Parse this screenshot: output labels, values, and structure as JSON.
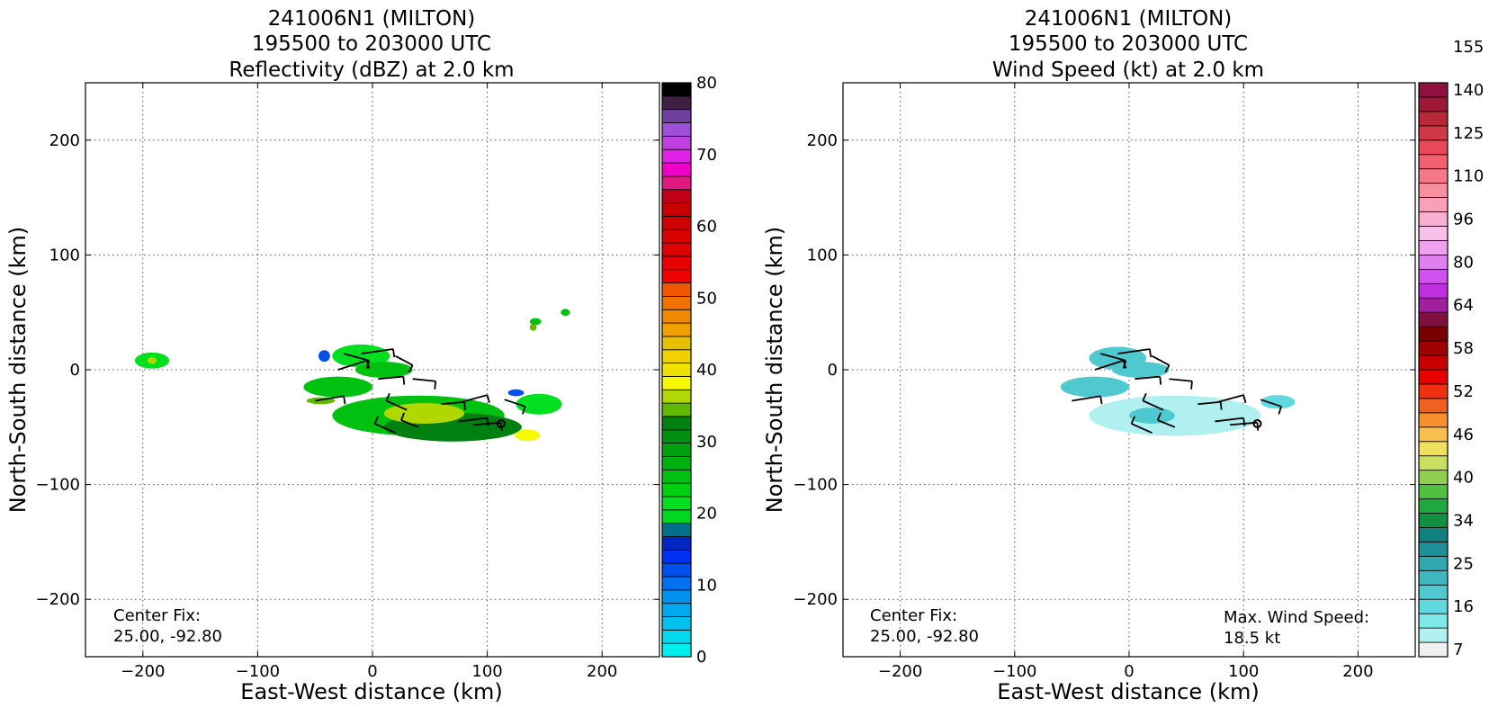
{
  "panels": [
    {
      "title_lines": [
        "241006N1 (MILTON)",
        "195500 to 203000 UTC",
        "Reflectivity (dBZ) at 2.0 km"
      ],
      "center_fix_lines": [
        "Center Fix:",
        "25.00, -92.80"
      ],
      "max_wind_lines": []
    },
    {
      "title_lines": [
        "241006N1 (MILTON)",
        "195500 to 203000 UTC",
        "Wind Speed (kt) at 2.0 km"
      ],
      "center_fix_lines": [
        "Center Fix:",
        "25.00, -92.80"
      ],
      "max_wind_lines": [
        "Max. Wind Speed:",
        "18.5 kt"
      ]
    }
  ],
  "chart_data": [
    {
      "type": "heatmap",
      "title": "241006N1 (MILTON) 195500 to 203000 UTC Reflectivity (dBZ) at 2.0 km",
      "xlabel": "East-West distance (km)",
      "ylabel": "North-South distance (km)",
      "xlim": [
        -250,
        250
      ],
      "ylim": [
        -250,
        250
      ],
      "xticks": [
        -200,
        -100,
        0,
        100,
        200
      ],
      "yticks": [
        -200,
        -100,
        0,
        100,
        200
      ],
      "grid": true,
      "colorbar": {
        "range": [
          0,
          80
        ],
        "ticks": [
          0,
          10,
          20,
          30,
          40,
          50,
          60,
          70,
          80
        ],
        "colors": [
          "#00eeee",
          "#00d8ee",
          "#00c0ee",
          "#00a8ee",
          "#0090f0",
          "#0070f0",
          "#0050f0",
          "#0030f0",
          "#0028c0",
          "#007088",
          "#00d820",
          "#00e020",
          "#00d010",
          "#00c010",
          "#00b010",
          "#00a010",
          "#009010",
          "#008010",
          "#60b800",
          "#b0d800",
          "#f8f800",
          "#f0e000",
          "#f0d000",
          "#e8c000",
          "#f0a000",
          "#f08800",
          "#f07000",
          "#f05800",
          "#f00000",
          "#e80000",
          "#e00000",
          "#d80000",
          "#d00000",
          "#c80000",
          "#c00018",
          "#e01880",
          "#f000c8",
          "#e020e8",
          "#c040e0",
          "#a050d8",
          "#7040a0",
          "#402040",
          "#000000"
        ]
      },
      "center_fix": [
        25.0,
        -92.8
      ],
      "center_km": [
        112,
        -47
      ],
      "echo_cells_km": [
        {
          "x": 40,
          "y": -40,
          "dx": 150,
          "dy": 35,
          "dbz": 25
        },
        {
          "x": 70,
          "y": -50,
          "dx": 120,
          "dy": 25,
          "dbz": 33
        },
        {
          "x": 45,
          "y": -38,
          "dx": 70,
          "dy": 18,
          "dbz": 37
        },
        {
          "x": 135,
          "y": -57,
          "dx": 22,
          "dy": 10,
          "dbz": 38
        },
        {
          "x": -10,
          "y": 12,
          "dx": 50,
          "dy": 20,
          "dbz": 22
        },
        {
          "x": -42,
          "y": 12,
          "dx": 10,
          "dy": 10,
          "dbz": 12
        },
        {
          "x": 10,
          "y": 0,
          "dx": 50,
          "dy": 14,
          "dbz": 25
        },
        {
          "x": -30,
          "y": -15,
          "dx": 60,
          "dy": 18,
          "dbz": 25
        },
        {
          "x": -45,
          "y": -27,
          "dx": 25,
          "dy": 6,
          "dbz": 34
        },
        {
          "x": -192,
          "y": 8,
          "dx": 30,
          "dy": 14,
          "dbz": 22
        },
        {
          "x": -192,
          "y": 8,
          "dx": 8,
          "dy": 6,
          "dbz": 37
        },
        {
          "x": 145,
          "y": -30,
          "dx": 40,
          "dy": 18,
          "dbz": 22
        },
        {
          "x": 125,
          "y": -20,
          "dx": 14,
          "dy": 6,
          "dbz": 12
        },
        {
          "x": 142,
          "y": 42,
          "dx": 10,
          "dy": 6,
          "dbz": 25
        },
        {
          "x": 168,
          "y": 50,
          "dx": 8,
          "dy": 6,
          "dbz": 25
        },
        {
          "x": 140,
          "y": 37,
          "dx": 6,
          "dy": 6,
          "dbz": 34
        }
      ]
    },
    {
      "type": "heatmap",
      "title": "241006N1 (MILTON) 195500 to 203000 UTC Wind Speed (kt) at 2.0 km",
      "xlabel": "East-West distance (km)",
      "ylabel": "North-South distance (km)",
      "xlim": [
        -250,
        250
      ],
      "ylim": [
        -250,
        250
      ],
      "xticks": [
        -200,
        -100,
        0,
        100,
        200
      ],
      "yticks": [
        -200,
        -100,
        0,
        100,
        200
      ],
      "grid": true,
      "colorbar": {
        "range": [
          0,
          160
        ],
        "ticks": [
          7,
          16,
          25,
          34,
          40,
          46,
          52,
          58,
          64,
          80,
          96,
          110,
          125,
          140,
          155
        ],
        "colors": [
          "#f0f0f0",
          "#b0f0f0",
          "#80e8e8",
          "#60d8e0",
          "#50c8d0",
          "#40b8c0",
          "#30a8b0",
          "#209098",
          "#108080",
          "#109040",
          "#20a840",
          "#50c040",
          "#90d050",
          "#c8e060",
          "#f0e060",
          "#f8c050",
          "#f89030",
          "#f06020",
          "#f03010",
          "#e80000",
          "#c80000",
          "#a00000",
          "#780000",
          "#801040",
          "#a020a0",
          "#c030e0",
          "#d050f0",
          "#e080f0",
          "#f0a0f0",
          "#f8c0e8",
          "#f8b0d0",
          "#f8a0b8",
          "#f890a0",
          "#f87888",
          "#f06070",
          "#e84858",
          "#d03848",
          "#b82838",
          "#a01838",
          "#901040"
        ]
      },
      "center_fix": [
        25.0,
        -92.8
      ],
      "center_km": [
        112,
        -47
      ],
      "max_wind_speed_kt": 18.5,
      "wind_cells_km": [
        {
          "x": 40,
          "y": -40,
          "dx": 150,
          "dy": 35,
          "kt": 7
        },
        {
          "x": -10,
          "y": 10,
          "dx": 50,
          "dy": 20,
          "kt": 16
        },
        {
          "x": 10,
          "y": 0,
          "dx": 50,
          "dy": 14,
          "kt": 16
        },
        {
          "x": -30,
          "y": -15,
          "dx": 60,
          "dy": 18,
          "kt": 16
        },
        {
          "x": 20,
          "y": -40,
          "dx": 40,
          "dy": 14,
          "kt": 16
        },
        {
          "x": 130,
          "y": -28,
          "dx": 30,
          "dy": 12,
          "kt": 12
        }
      ]
    }
  ],
  "wind_barbs_km": [
    {
      "x": -25,
      "y": 14,
      "dx": 22,
      "dy": -6
    },
    {
      "x": -10,
      "y": 14,
      "dx": 28,
      "dy": 4
    },
    {
      "x": 20,
      "y": 12,
      "dx": 15,
      "dy": -8
    },
    {
      "x": -30,
      "y": 0,
      "dx": 25,
      "dy": 8
    },
    {
      "x": 5,
      "y": -8,
      "dx": 22,
      "dy": 2
    },
    {
      "x": 35,
      "y": -8,
      "dx": 20,
      "dy": -2
    },
    {
      "x": -50,
      "y": -27,
      "dx": 25,
      "dy": 4
    },
    {
      "x": 30,
      "y": -35,
      "dx": -18,
      "dy": 8
    },
    {
      "x": 60,
      "y": -30,
      "dx": 20,
      "dy": 2
    },
    {
      "x": 40,
      "y": -50,
      "dx": -15,
      "dy": 6
    },
    {
      "x": 20,
      "y": -55,
      "dx": -18,
      "dy": 8
    },
    {
      "x": 75,
      "y": -45,
      "dx": 25,
      "dy": 3
    },
    {
      "x": 88,
      "y": -48,
      "dx": 24,
      "dy": 2
    },
    {
      "x": 78,
      "y": -28,
      "dx": 22,
      "dy": 6
    },
    {
      "x": 115,
      "y": -26,
      "dx": 18,
      "dy": -6
    }
  ]
}
